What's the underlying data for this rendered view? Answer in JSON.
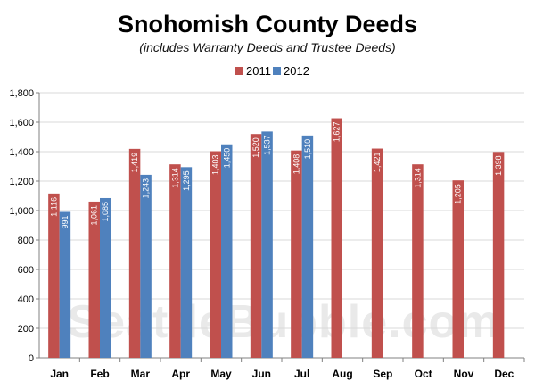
{
  "colors": {
    "s2011": "#C0504D",
    "s2012": "#4F81BD",
    "grid": "#d9d9d9",
    "axis": "#808080"
  },
  "watermark": "SeattleBubble.com",
  "chart_data": {
    "type": "bar",
    "title": "Snohomish County Deeds",
    "subtitle": "(includes Warranty Deeds and Trustee Deeds)",
    "xlabel": "",
    "ylabel": "",
    "ylim": [
      0,
      1800
    ],
    "yticks": [
      "0",
      "200",
      "400",
      "600",
      "800",
      "1,000",
      "1,200",
      "1,400",
      "1,600",
      "1,800"
    ],
    "grid": true,
    "legend_position": "top-center",
    "categories": [
      "Jan",
      "Feb",
      "Mar",
      "Apr",
      "May",
      "Jun",
      "Jul",
      "Aug",
      "Sep",
      "Oct",
      "Nov",
      "Dec"
    ],
    "series": [
      {
        "name": "2011",
        "values": [
          1116,
          1061,
          1419,
          1314,
          1403,
          1520,
          1408,
          1627,
          1421,
          1314,
          1205,
          1398
        ],
        "labels": [
          "1,116",
          "1,061",
          "1,419",
          "1,314",
          "1,403",
          "1,520",
          "1,408",
          "1,627",
          "1,421",
          "1,314",
          "1,205",
          "1,398"
        ]
      },
      {
        "name": "2012",
        "values": [
          991,
          1085,
          1243,
          1295,
          1450,
          1537,
          1510,
          null,
          null,
          null,
          null,
          null
        ],
        "labels": [
          "991",
          "1,085",
          "1,243",
          "1,295",
          "1,450",
          "1,537",
          "1,510",
          null,
          null,
          null,
          null,
          null
        ]
      }
    ]
  }
}
